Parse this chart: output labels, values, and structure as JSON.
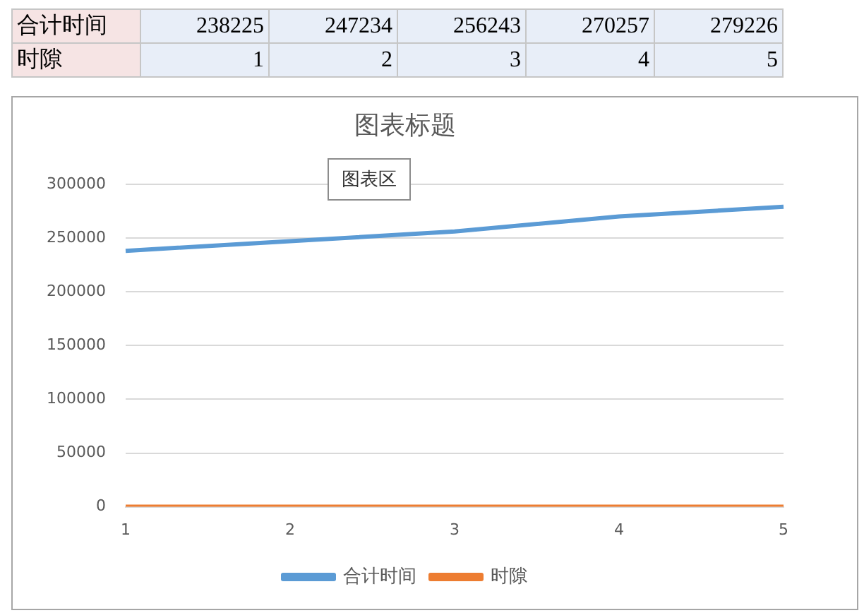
{
  "chart_data": {
    "type": "line",
    "title": "图表标题",
    "categories": [
      "1",
      "2",
      "3",
      "4",
      "5"
    ],
    "series": [
      {
        "name": "合计时间",
        "color": "#5b9bd5",
        "values": [
          238225,
          247234,
          256243,
          270257,
          279226
        ]
      },
      {
        "name": "时隙",
        "color": "#ed7d31",
        "values": [
          1,
          2,
          3,
          4,
          5
        ]
      }
    ],
    "ylim": [
      0,
      300000
    ],
    "yticks": [
      0,
      50000,
      100000,
      150000,
      200000,
      250000,
      300000
    ],
    "grid": "y",
    "legend": "bottom",
    "marker": "none",
    "line_style": "solid",
    "annotations": [
      "238225",
      "247234",
      "256243",
      "270257",
      "279226",
      "1",
      "2",
      "3",
      "4",
      "5",
      "图表区"
    ]
  }
}
